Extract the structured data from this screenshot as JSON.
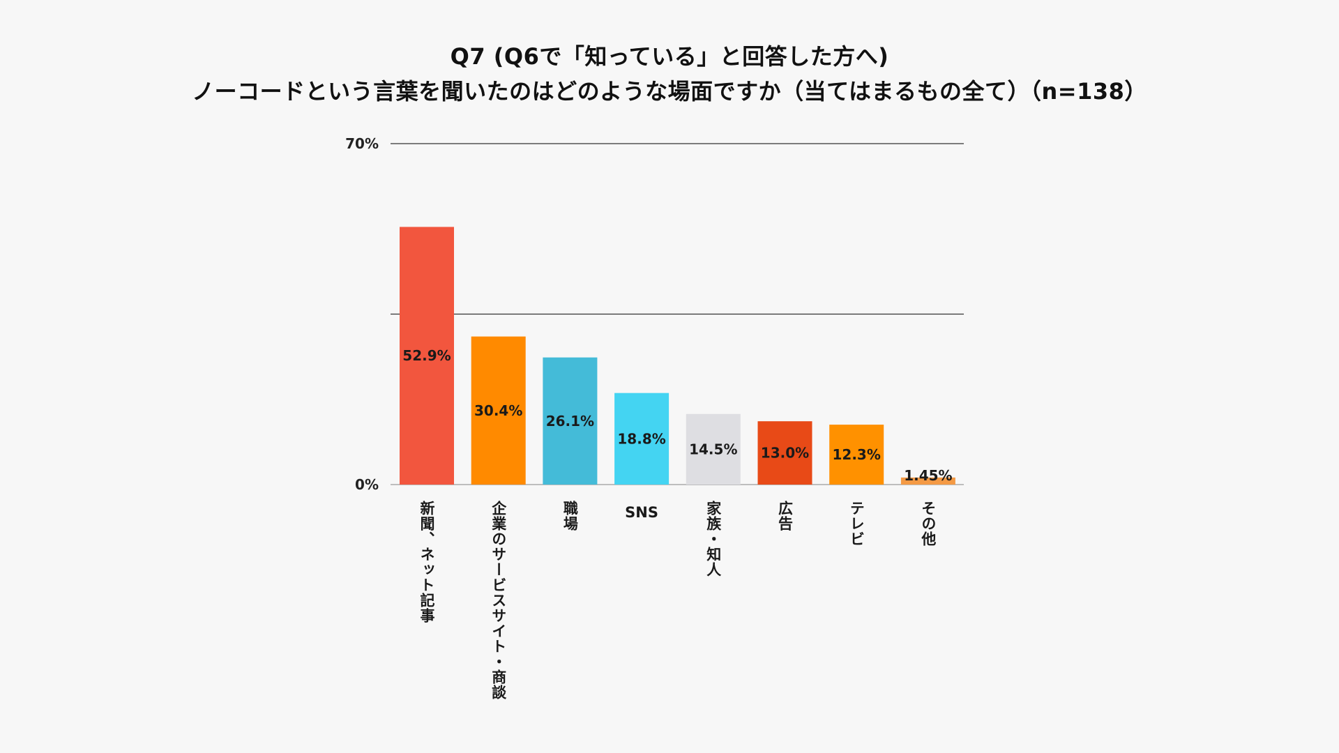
{
  "title_line1": "Q7 (Q6で「知っている」と回答した方へ)",
  "title_line2": "ノーコードという言葉を聞いたのはどのような場面ですか（当てはまるもの全て）（n=138）",
  "chart_data": {
    "type": "bar",
    "title": "Q7 (Q6で「知っている」と回答した方へ) ノーコードという言葉を聞いたのはどのような場面ですか（当てはまるもの全て）（n=138）",
    "xlabel": "",
    "ylabel": "",
    "ylim": [
      0,
      70
    ],
    "grid": true,
    "gridlines": [
      0,
      35,
      70
    ],
    "y_tick_labels": [
      {
        "value": 70,
        "label": "70%"
      },
      {
        "value": 0,
        "label": "0%"
      }
    ],
    "categories": [
      "新聞、ネット記事",
      "企業のサービスサイト・商談",
      "職場",
      "SNS",
      "家族・知人",
      "広告",
      "テレビ",
      "その他"
    ],
    "values": [
      52.9,
      30.4,
      26.1,
      18.8,
      14.5,
      13.0,
      12.3,
      1.45
    ],
    "value_labels": [
      "52.9%",
      "30.4%",
      "26.1%",
      "18.8%",
      "14.5%",
      "13.0%",
      "12.3%",
      "1.45%"
    ],
    "colors": [
      "#F2563E",
      "#FF8A00",
      "#44BBD8",
      "#44D4F2",
      "#DEDEE2",
      "#E84A17",
      "#FF9100",
      "#F49A45"
    ]
  }
}
